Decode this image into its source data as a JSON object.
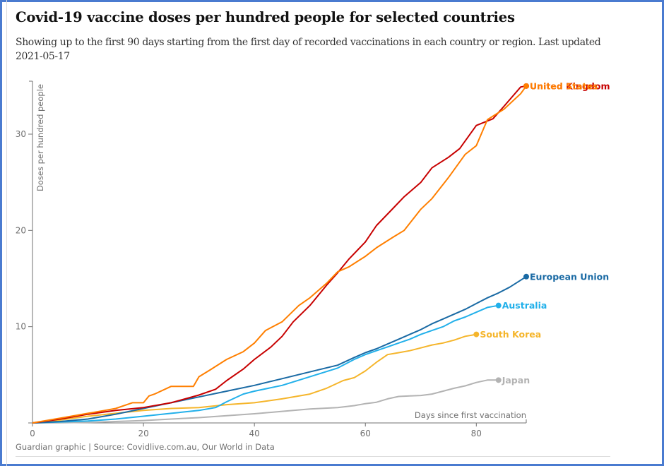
{
  "header": {
    "title": "Covid-19 vaccine doses per hundred people for selected countries",
    "subtitle": "Showing up to the first 90 days starting from the first day of recorded vaccinations in each country or region. Last updated 2021-05-17"
  },
  "footer": {
    "source": "Guardian graphic | Source: Covidlive.com.au, Our World in Data"
  },
  "chart_data": {
    "type": "line",
    "title": "Covid-19 vaccine doses per hundred people for selected countries",
    "xlabel": "Days since first vaccination",
    "ylabel": "Doses per hundred people",
    "xlim": [
      0,
      89
    ],
    "ylim": [
      0,
      35.5
    ],
    "x_ticks": [
      0,
      20,
      40,
      60,
      80
    ],
    "y_ticks": [
      10,
      20,
      30
    ],
    "grid": false,
    "legend": "inline-end-labels",
    "series": [
      {
        "name": "Japan",
        "color": "#b3b3b3",
        "x": [
          0,
          5,
          10,
          15,
          20,
          25,
          30,
          35,
          40,
          45,
          50,
          55,
          58,
          60,
          62,
          64,
          66,
          68,
          70,
          72,
          74,
          76,
          78,
          80,
          82,
          84
        ],
        "y": [
          0,
          0.02,
          0.05,
          0.15,
          0.25,
          0.4,
          0.55,
          0.75,
          0.95,
          1.2,
          1.45,
          1.6,
          1.8,
          2.0,
          2.15,
          2.5,
          2.75,
          2.8,
          2.85,
          3.0,
          3.3,
          3.6,
          3.85,
          4.2,
          4.45,
          4.45
        ]
      },
      {
        "name": "South Korea",
        "color": "#f5b52b",
        "x": [
          0,
          5,
          10,
          15,
          20,
          25,
          30,
          35,
          40,
          45,
          50,
          53,
          56,
          58,
          60,
          62,
          64,
          66,
          68,
          70,
          72,
          74,
          76,
          78,
          80
        ],
        "y": [
          0,
          0.3,
          0.7,
          1.0,
          1.3,
          1.5,
          1.6,
          1.9,
          2.1,
          2.5,
          3.0,
          3.6,
          4.4,
          4.7,
          5.4,
          6.3,
          7.1,
          7.3,
          7.5,
          7.8,
          8.1,
          8.3,
          8.6,
          9.0,
          9.2
        ]
      },
      {
        "name": "Australia",
        "color": "#22b0ea",
        "x": [
          0,
          5,
          10,
          15,
          20,
          25,
          30,
          33,
          35,
          38,
          40,
          45,
          50,
          55,
          58,
          60,
          62,
          64,
          66,
          68,
          70,
          72,
          74,
          76,
          78,
          80,
          82,
          84
        ],
        "y": [
          0,
          0.1,
          0.2,
          0.4,
          0.7,
          1.0,
          1.3,
          1.6,
          2.2,
          3.0,
          3.3,
          3.9,
          4.8,
          5.7,
          6.6,
          7.1,
          7.5,
          7.9,
          8.3,
          8.7,
          9.2,
          9.6,
          10.0,
          10.6,
          11.0,
          11.5,
          12.0,
          12.2
        ]
      },
      {
        "name": "European Union",
        "color": "#1a6aa4",
        "x": [
          0,
          5,
          10,
          15,
          20,
          25,
          30,
          35,
          40,
          45,
          50,
          55,
          58,
          60,
          62,
          64,
          66,
          68,
          70,
          72,
          74,
          76,
          78,
          80,
          82,
          84,
          86,
          89
        ],
        "y": [
          0,
          0.15,
          0.4,
          0.9,
          1.5,
          2.1,
          2.7,
          3.3,
          3.9,
          4.6,
          5.3,
          6.0,
          6.8,
          7.3,
          7.7,
          8.2,
          8.7,
          9.2,
          9.7,
          10.3,
          10.8,
          11.3,
          11.8,
          12.4,
          13.0,
          13.5,
          14.1,
          15.2
        ]
      },
      {
        "name": "United Kingdom",
        "color": "#c70000",
        "x": [
          0,
          5,
          10,
          15,
          20,
          25,
          30,
          33,
          35,
          38,
          40,
          43,
          45,
          47,
          50,
          53,
          55,
          57,
          60,
          62,
          65,
          67,
          70,
          72,
          75,
          77,
          80,
          83,
          85,
          88,
          89
        ],
        "y": [
          0,
          0.4,
          0.9,
          1.3,
          1.6,
          2.1,
          2.9,
          3.5,
          4.4,
          5.6,
          6.6,
          7.9,
          9.0,
          10.5,
          12.2,
          14.3,
          15.6,
          17.0,
          18.8,
          20.5,
          22.3,
          23.5,
          25.0,
          26.5,
          27.6,
          28.5,
          30.9,
          31.6,
          32.9,
          34.9,
          35.0
        ]
      },
      {
        "name": "United States",
        "color": "#ff7f00",
        "x": [
          0,
          5,
          10,
          13,
          15,
          18,
          20,
          21,
          22,
          25,
          28,
          29,
          30,
          32,
          35,
          38,
          40,
          42,
          45,
          48,
          50,
          53,
          55,
          57,
          60,
          62,
          65,
          67,
          70,
          72,
          75,
          78,
          80,
          82,
          85,
          88,
          89
        ],
        "y": [
          0,
          0.5,
          1.0,
          1.3,
          1.5,
          2.1,
          2.1,
          2.8,
          3.0,
          3.8,
          3.8,
          3.8,
          4.8,
          5.5,
          6.6,
          7.4,
          8.3,
          9.6,
          10.5,
          12.2,
          13.0,
          14.5,
          15.7,
          16.2,
          17.3,
          18.2,
          19.3,
          20.0,
          22.2,
          23.3,
          25.5,
          27.9,
          28.8,
          31.5,
          32.6,
          34.2,
          35.0
        ]
      }
    ],
    "end_labels": [
      {
        "series": "United Kingdom",
        "text": "United Kingdom"
      },
      {
        "series": "United States",
        "text": "United States"
      },
      {
        "series": "European Union",
        "text": "European Union"
      },
      {
        "series": "Australia",
        "text": "Australia"
      },
      {
        "series": "South Korea",
        "text": "South Korea"
      },
      {
        "series": "Japan",
        "text": "Japan"
      }
    ]
  }
}
